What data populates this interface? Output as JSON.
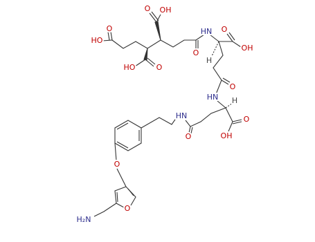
{
  "atoms": [
    {
      "label": "HO"
    },
    {
      "label": "O"
    },
    {
      "label": "O"
    },
    {
      "label": "OH"
    },
    {
      "label": "HO"
    },
    {
      "label": "O"
    },
    {
      "label": "O"
    },
    {
      "label": "HN"
    },
    {
      "label": "O"
    },
    {
      "label": "OH"
    },
    {
      "label": "H"
    },
    {
      "label": "O"
    },
    {
      "label": "HN"
    },
    {
      "label": "H"
    },
    {
      "label": "O"
    },
    {
      "label": "OH"
    },
    {
      "label": "HN"
    },
    {
      "label": "O"
    },
    {
      "label": "O"
    },
    {
      "label": "O"
    },
    {
      "label": "H₂N"
    }
  ]
}
